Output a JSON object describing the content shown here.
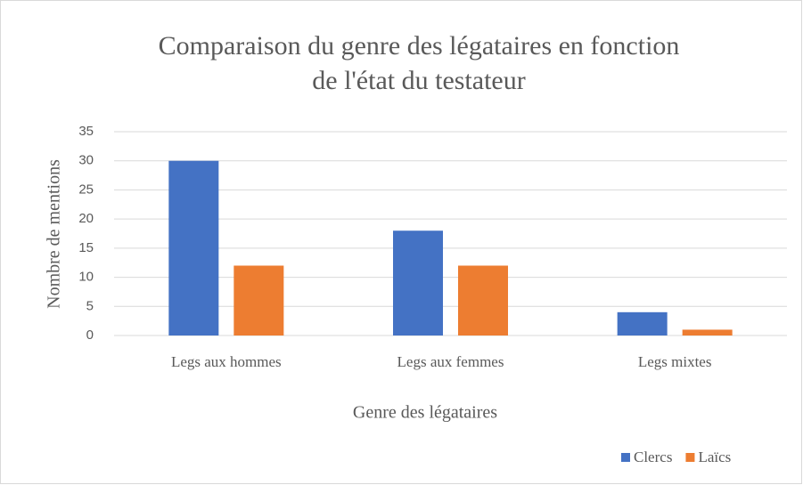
{
  "chart_data": {
    "type": "bar",
    "title": "Comparaison du genre des légataires en fonction de l'état du testateur",
    "xlabel": "Genre des légataires",
    "ylabel": "Nombre de mentions",
    "categories": [
      "Legs aux hommes",
      "Legs aux femmes",
      "Legs mixtes"
    ],
    "series": [
      {
        "name": "Clercs",
        "color": "#4472c4",
        "values": [
          30,
          18,
          4
        ]
      },
      {
        "name": "Laïcs",
        "color": "#ed7d31",
        "values": [
          12,
          12,
          1
        ]
      }
    ],
    "ylim": [
      0,
      35
    ],
    "yticks": [
      0,
      5,
      10,
      15,
      20,
      25,
      30,
      35
    ],
    "grid": true,
    "legend": "bottom-right"
  }
}
